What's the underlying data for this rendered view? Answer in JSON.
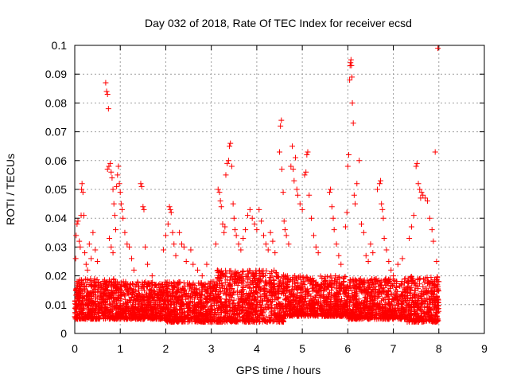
{
  "chart_data": {
    "type": "scatter",
    "title": "Day 032 of 2018, Rate Of TEC Index for receiver ecsd",
    "xlabel": "GPS time / hours",
    "ylabel": "ROTI / TECUs",
    "xlim": [
      0,
      9
    ],
    "ylim": [
      0,
      0.1
    ],
    "xticks": [
      "0",
      "1",
      "2",
      "3",
      "4",
      "5",
      "6",
      "7",
      "8",
      "9"
    ],
    "yticks": [
      "0",
      "0.01",
      "0.02",
      "0.03",
      "0.04",
      "0.05",
      "0.06",
      "0.07",
      "0.08",
      "0.09",
      "0.1"
    ],
    "grid": true,
    "marker": "plus",
    "series": [
      {
        "color": "#ff0000",
        "points": [
          [
            0.02,
            0.026
          ],
          [
            0.03,
            0.034
          ],
          [
            0.05,
            0.038
          ],
          [
            0.07,
            0.039
          ],
          [
            0.1,
            0.032
          ],
          [
            0.12,
            0.03
          ],
          [
            0.14,
            0.041
          ],
          [
            0.15,
            0.05
          ],
          [
            0.16,
            0.052
          ],
          [
            0.18,
            0.049
          ],
          [
            0.2,
            0.041
          ],
          [
            0.22,
            0.028
          ],
          [
            0.25,
            0.024
          ],
          [
            0.28,
            0.022
          ],
          [
            0.32,
            0.031
          ],
          [
            0.36,
            0.026
          ],
          [
            0.4,
            0.035
          ],
          [
            0.45,
            0.029
          ],
          [
            0.5,
            0.025
          ],
          [
            0.68,
            0.087
          ],
          [
            0.7,
            0.084
          ],
          [
            0.72,
            0.083
          ],
          [
            0.74,
            0.078
          ],
          [
            0.72,
            0.057
          ],
          [
            0.75,
            0.058
          ],
          [
            0.78,
            0.059
          ],
          [
            0.8,
            0.056
          ],
          [
            0.82,
            0.054
          ],
          [
            0.84,
            0.05
          ],
          [
            0.86,
            0.045
          ],
          [
            0.88,
            0.041
          ],
          [
            0.9,
            0.036
          ],
          [
            0.76,
            0.033
          ],
          [
            0.8,
            0.03
          ],
          [
            0.84,
            0.028
          ],
          [
            0.92,
            0.051
          ],
          [
            0.94,
            0.055
          ],
          [
            0.96,
            0.058
          ],
          [
            0.98,
            0.052
          ],
          [
            1.0,
            0.049
          ],
          [
            1.02,
            0.045
          ],
          [
            1.04,
            0.043
          ],
          [
            1.06,
            0.04
          ],
          [
            1.1,
            0.035
          ],
          [
            1.15,
            0.031
          ],
          [
            1.2,
            0.03
          ],
          [
            1.25,
            0.026
          ],
          [
            1.3,
            0.022
          ],
          [
            1.45,
            0.052
          ],
          [
            1.47,
            0.051
          ],
          [
            1.5,
            0.044
          ],
          [
            1.52,
            0.043
          ],
          [
            1.55,
            0.03
          ],
          [
            1.6,
            0.024
          ],
          [
            1.7,
            0.02
          ],
          [
            1.95,
            0.029
          ],
          [
            2.0,
            0.034
          ],
          [
            2.05,
            0.038
          ],
          [
            2.08,
            0.044
          ],
          [
            2.1,
            0.043
          ],
          [
            2.12,
            0.042
          ],
          [
            2.15,
            0.035
          ],
          [
            2.18,
            0.031
          ],
          [
            2.22,
            0.027
          ],
          [
            2.3,
            0.035
          ],
          [
            2.35,
            0.031
          ],
          [
            2.4,
            0.03
          ],
          [
            2.45,
            0.025
          ],
          [
            2.55,
            0.029
          ],
          [
            2.6,
            0.024
          ],
          [
            2.7,
            0.022
          ],
          [
            2.8,
            0.02
          ],
          [
            2.9,
            0.024
          ],
          [
            3.1,
            0.031
          ],
          [
            3.15,
            0.05
          ],
          [
            3.18,
            0.049
          ],
          [
            3.2,
            0.046
          ],
          [
            3.22,
            0.044
          ],
          [
            3.25,
            0.038
          ],
          [
            3.28,
            0.035
          ],
          [
            3.3,
            0.037
          ],
          [
            3.32,
            0.055
          ],
          [
            3.35,
            0.059
          ],
          [
            3.38,
            0.06
          ],
          [
            3.4,
            0.065
          ],
          [
            3.42,
            0.066
          ],
          [
            3.45,
            0.058
          ],
          [
            3.48,
            0.045
          ],
          [
            3.5,
            0.04
          ],
          [
            3.52,
            0.036
          ],
          [
            3.55,
            0.034
          ],
          [
            3.6,
            0.031
          ],
          [
            3.65,
            0.029
          ],
          [
            3.7,
            0.033
          ],
          [
            3.75,
            0.036
          ],
          [
            3.8,
            0.041
          ],
          [
            3.85,
            0.043
          ],
          [
            3.9,
            0.04
          ],
          [
            3.95,
            0.038
          ],
          [
            4.0,
            0.036
          ],
          [
            4.05,
            0.043
          ],
          [
            4.1,
            0.039
          ],
          [
            4.15,
            0.034
          ],
          [
            4.2,
            0.031
          ],
          [
            4.25,
            0.029
          ],
          [
            4.3,
            0.035
          ],
          [
            4.35,
            0.032
          ],
          [
            4.4,
            0.028
          ],
          [
            4.5,
            0.063
          ],
          [
            4.52,
            0.072
          ],
          [
            4.54,
            0.074
          ],
          [
            4.55,
            0.057
          ],
          [
            4.58,
            0.049
          ],
          [
            4.6,
            0.039
          ],
          [
            4.62,
            0.036
          ],
          [
            4.65,
            0.034
          ],
          [
            4.7,
            0.031
          ],
          [
            4.75,
            0.058
          ],
          [
            4.78,
            0.065
          ],
          [
            4.8,
            0.057
          ],
          [
            4.82,
            0.053
          ],
          [
            4.85,
            0.061
          ],
          [
            4.88,
            0.05
          ],
          [
            4.9,
            0.048
          ],
          [
            4.95,
            0.045
          ],
          [
            5.0,
            0.043
          ],
          [
            5.05,
            0.055
          ],
          [
            5.08,
            0.056
          ],
          [
            5.1,
            0.062
          ],
          [
            5.12,
            0.063
          ],
          [
            5.15,
            0.048
          ],
          [
            5.2,
            0.04
          ],
          [
            5.25,
            0.034
          ],
          [
            5.3,
            0.03
          ],
          [
            5.35,
            0.028
          ],
          [
            5.6,
            0.049
          ],
          [
            5.62,
            0.05
          ],
          [
            5.65,
            0.044
          ],
          [
            5.68,
            0.04
          ],
          [
            5.7,
            0.036
          ],
          [
            5.75,
            0.031
          ],
          [
            5.8,
            0.027
          ],
          [
            5.85,
            0.024
          ],
          [
            5.95,
            0.037
          ],
          [
            5.98,
            0.042
          ],
          [
            6.0,
            0.058
          ],
          [
            6.02,
            0.062
          ],
          [
            6.04,
            0.088
          ],
          [
            6.05,
            0.093
          ],
          [
            6.06,
            0.094
          ],
          [
            6.07,
            0.095
          ],
          [
            6.08,
            0.093
          ],
          [
            6.09,
            0.089
          ],
          [
            6.1,
            0.08
          ],
          [
            6.12,
            0.073
          ],
          [
            6.14,
            0.048
          ],
          [
            6.16,
            0.045
          ],
          [
            6.2,
            0.052
          ],
          [
            6.25,
            0.06
          ],
          [
            6.3,
            0.038
          ],
          [
            6.35,
            0.035
          ],
          [
            6.4,
            0.027
          ],
          [
            6.45,
            0.025
          ],
          [
            6.5,
            0.031
          ],
          [
            6.55,
            0.028
          ],
          [
            6.65,
            0.05
          ],
          [
            6.7,
            0.052
          ],
          [
            6.72,
            0.053
          ],
          [
            6.74,
            0.045
          ],
          [
            6.76,
            0.043
          ],
          [
            6.78,
            0.04
          ],
          [
            6.8,
            0.033
          ],
          [
            6.85,
            0.029
          ],
          [
            6.9,
            0.025
          ],
          [
            6.95,
            0.022
          ],
          [
            7.0,
            0.02
          ],
          [
            7.1,
            0.024
          ],
          [
            7.2,
            0.026
          ],
          [
            7.35,
            0.033
          ],
          [
            7.4,
            0.037
          ],
          [
            7.45,
            0.041
          ],
          [
            7.5,
            0.058
          ],
          [
            7.52,
            0.059
          ],
          [
            7.55,
            0.052
          ],
          [
            7.58,
            0.05
          ],
          [
            7.6,
            0.047
          ],
          [
            7.62,
            0.049
          ],
          [
            7.65,
            0.048
          ],
          [
            7.7,
            0.047
          ],
          [
            7.75,
            0.046
          ],
          [
            7.8,
            0.04
          ],
          [
            7.85,
            0.036
          ],
          [
            7.88,
            0.032
          ],
          [
            7.92,
            0.063
          ],
          [
            7.95,
            0.025
          ],
          [
            7.98,
            0.099
          ],
          [
            8.0,
            0.018
          ]
        ],
        "band": [
          {
            "x0": 0.0,
            "x1": 0.9,
            "y0": 0.005,
            "y1": 0.019
          },
          {
            "x0": 0.9,
            "x1": 2.0,
            "y0": 0.005,
            "y1": 0.018
          },
          {
            "x0": 2.0,
            "x1": 3.1,
            "y0": 0.004,
            "y1": 0.018
          },
          {
            "x0": 3.1,
            "x1": 4.6,
            "y0": 0.004,
            "y1": 0.022
          },
          {
            "x0": 4.6,
            "x1": 6.0,
            "y0": 0.006,
            "y1": 0.02
          },
          {
            "x0": 6.0,
            "x1": 7.3,
            "y0": 0.005,
            "y1": 0.019
          },
          {
            "x0": 7.3,
            "x1": 8.0,
            "y0": 0.004,
            "y1": 0.02
          }
        ]
      }
    ]
  }
}
